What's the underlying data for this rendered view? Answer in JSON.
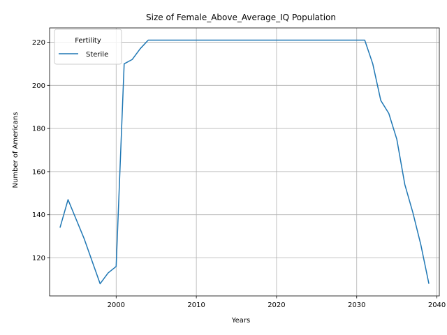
{
  "chart_data": {
    "type": "line",
    "title": "Size of Female_Above_Average_IQ Population",
    "xlabel": "Years",
    "ylabel": "Number of Americans",
    "xlim": [
      1991.7,
      2040.3
    ],
    "ylim": [
      102.35,
      226.65
    ],
    "xticks": [
      2000,
      2010,
      2020,
      2030,
      2040
    ],
    "yticks": [
      120,
      140,
      160,
      180,
      200,
      220
    ],
    "grid": true,
    "legend": {
      "title": "Fertility",
      "placement": "top-left"
    },
    "series": [
      {
        "name": "Sterile",
        "color": "#1f77b4",
        "x": [
          1993,
          1994,
          1995,
          1996,
          1997,
          1998,
          1999,
          2000,
          2001,
          2002,
          2003,
          2004,
          2005,
          2006,
          2007,
          2008,
          2009,
          2010,
          2011,
          2012,
          2013,
          2014,
          2015,
          2016,
          2017,
          2018,
          2019,
          2020,
          2021,
          2022,
          2023,
          2024,
          2025,
          2026,
          2027,
          2028,
          2029,
          2030,
          2031,
          2032,
          2033,
          2034,
          2035,
          2036,
          2037,
          2038,
          2039
        ],
        "y": [
          134,
          147,
          138,
          129,
          118.5,
          108,
          113,
          116,
          210,
          212,
          217,
          221,
          221,
          221,
          221,
          221,
          221,
          221,
          221,
          221,
          221,
          221,
          221,
          221,
          221,
          221,
          221,
          221,
          221,
          221,
          221,
          221,
          221,
          221,
          221,
          221,
          221,
          221,
          221,
          210,
          193,
          187,
          175,
          154,
          141,
          126,
          108
        ]
      }
    ]
  }
}
